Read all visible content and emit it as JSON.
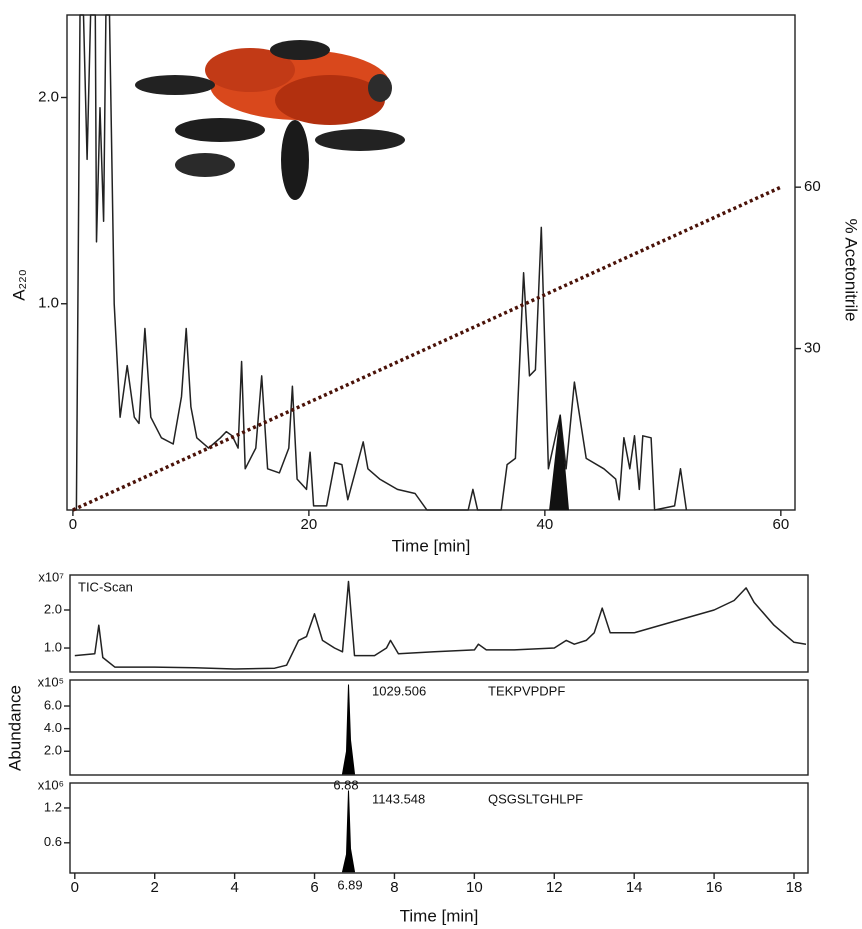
{
  "chart_data": [
    {
      "type": "line",
      "xlabel": "Time [min]",
      "ylabel": "A₂₂₀",
      "y2label": "% Acetonitrile",
      "xlim": [
        -0.5,
        61.2
      ],
      "xticks": [
        0,
        20,
        40,
        60
      ],
      "ylim": [
        0,
        2.4
      ],
      "yticks": [
        {
          "value": 1,
          "label": "1.0"
        },
        {
          "value": 2,
          "label": "2.0"
        }
      ],
      "y2lim": [
        0,
        92
      ],
      "y2ticks": [
        30,
        60
      ],
      "series": [
        {
          "color": "#222222",
          "x": [
            0,
            0.3,
            0.6,
            0.9,
            1.2,
            1.5,
            1.9,
            2.0,
            2.3,
            2.6,
            2.8,
            3.1,
            3.5,
            4.0,
            4.6,
            5.2,
            5.6,
            6.1,
            6.6,
            7.5,
            8.5,
            9.2,
            9.6,
            10.0,
            10.5,
            11.5,
            12.5,
            13.0,
            13.5,
            14.0,
            14.3,
            14.6,
            15.5,
            16.0,
            16.5,
            17.5,
            18.3,
            18.6,
            19.0,
            19.8,
            20.1,
            20.4,
            21.5,
            22.2,
            22.8,
            23.3,
            24.0,
            24.6,
            25.0,
            26.0,
            27.5,
            29.0,
            30.0,
            33.5,
            33.9,
            34.3,
            36.3,
            36.8,
            37.5,
            38.2,
            38.7,
            39.2,
            39.7,
            40.3,
            41.3,
            41.8,
            42.5,
            43.5,
            45.0,
            46.0,
            46.3,
            46.7,
            47.2,
            47.6,
            48.0,
            48.3,
            49.0,
            49.3,
            51.0,
            51.5,
            52.0
          ],
          "values": [
            0,
            0,
            2.4,
            2.4,
            1.7,
            2.4,
            2.4,
            1.3,
            1.95,
            1.4,
            2.4,
            2.4,
            1.0,
            0.45,
            0.7,
            0.45,
            0.42,
            0.88,
            0.45,
            0.35,
            0.32,
            0.55,
            0.88,
            0.5,
            0.35,
            0.3,
            0.35,
            0.38,
            0.36,
            0.3,
            0.72,
            0.2,
            0.3,
            0.65,
            0.2,
            0.18,
            0.3,
            0.6,
            0.15,
            0.1,
            0.28,
            0.02,
            0.02,
            0.23,
            0.22,
            0.05,
            0.2,
            0.33,
            0.2,
            0.15,
            0.1,
            0.08,
            0,
            0,
            0.1,
            0,
            0,
            0.22,
            0.25,
            1.15,
            0.65,
            0.68,
            1.37,
            0.2,
            0.46,
            0.2,
            0.62,
            0.25,
            0.2,
            0.15,
            0.05,
            0.35,
            0.2,
            0.36,
            0.1,
            0.36,
            0.35,
            0,
            0.02,
            0.2,
            0
          ]
        },
        {
          "color": "#111111",
          "fill": true,
          "x": [
            40.4,
            41.3,
            42.0
          ],
          "values": [
            0,
            0.46,
            0
          ]
        },
        {
          "color": "#4a1208",
          "style": "dotted",
          "axis": "y2",
          "x": [
            0,
            60
          ],
          "values": [
            0,
            60
          ]
        }
      ]
    },
    {
      "type": "line",
      "title": "TIC-Scan",
      "scale_label": "x10⁷",
      "xlim": [
        -0.12,
        18.35
      ],
      "ylim": [
        0.37,
        2.92
      ],
      "yticks": [
        {
          "value": 1,
          "label": "1.0"
        },
        {
          "value": 2,
          "label": "2.0"
        }
      ],
      "series": [
        {
          "color": "#222222",
          "x": [
            0,
            0.5,
            0.6,
            0.7,
            1.0,
            2,
            3,
            4,
            5,
            5.3,
            5.6,
            5.8,
            6.0,
            6.2,
            6.5,
            6.7,
            6.85,
            7.0,
            7.5,
            7.8,
            7.9,
            8.1,
            9,
            10,
            10.1,
            10.3,
            11,
            12,
            12.3,
            12.5,
            12.8,
            13.0,
            13.2,
            13.4,
            14,
            15,
            16,
            16.5,
            16.8,
            17.0,
            17.5,
            18,
            18.3
          ],
          "values": [
            0.8,
            0.85,
            1.6,
            0.75,
            0.5,
            0.5,
            0.48,
            0.45,
            0.47,
            0.55,
            1.2,
            1.3,
            1.9,
            1.2,
            1.0,
            0.9,
            2.75,
            0.8,
            0.8,
            1.0,
            1.2,
            0.85,
            0.9,
            0.95,
            1.1,
            0.95,
            0.95,
            1.0,
            1.2,
            1.1,
            1.2,
            1.4,
            2.05,
            1.4,
            1.4,
            1.7,
            2.0,
            2.25,
            2.58,
            2.2,
            1.6,
            1.15,
            1.1
          ]
        }
      ]
    },
    {
      "type": "line",
      "scale_label": "x10⁵",
      "ylabel": "Abundance",
      "xlim": [
        -0.12,
        18.35
      ],
      "ylim": [
        -0.1,
        8.3
      ],
      "yticks": [
        {
          "value": 2,
          "label": "2.0"
        },
        {
          "value": 4,
          "label": "4.0"
        },
        {
          "value": 6,
          "label": "6.0"
        }
      ],
      "annotations": [
        "1029.506",
        "TEKPVPDPF"
      ],
      "series": [
        {
          "color": "#000000",
          "fill": true,
          "x": [
            6.7,
            6.8,
            6.85,
            6.9,
            7.0
          ],
          "values": [
            0,
            2,
            7.9,
            3,
            0
          ]
        }
      ]
    },
    {
      "type": "line",
      "scale_label": "x10⁶",
      "xlabel": "Time [min]",
      "xlim": [
        -0.12,
        18.35
      ],
      "xticks": [
        0,
        2,
        4,
        6,
        8,
        10,
        12,
        14,
        16,
        18
      ],
      "ylim": [
        0.08,
        1.63
      ],
      "yticks": [
        0.6,
        1.2
      ],
      "annotations": [
        "6.88",
        "1143.548",
        "QSGSLTGHLPF",
        "6.89"
      ],
      "series": [
        {
          "color": "#000000",
          "fill": true,
          "x": [
            6.7,
            6.8,
            6.85,
            6.9,
            7.0
          ],
          "values": [
            0.1,
            0.4,
            1.5,
            0.5,
            0.1
          ]
        }
      ]
    }
  ]
}
